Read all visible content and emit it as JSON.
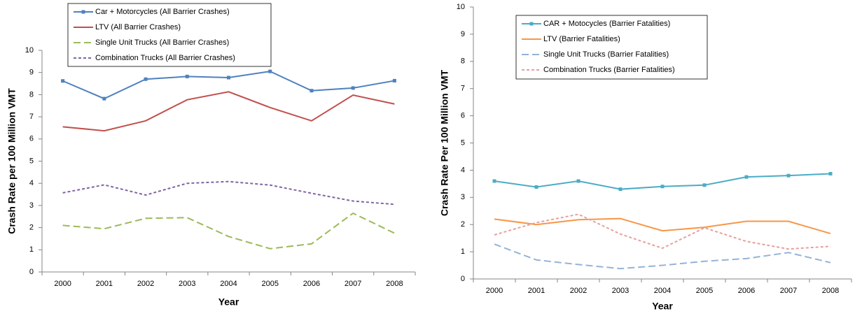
{
  "chart_data": [
    {
      "type": "line",
      "y_label": "Crash Rate per 100 Million VMT",
      "x_label": "Year",
      "categories": [
        "2000",
        "2001",
        "2002",
        "2003",
        "2004",
        "2005",
        "2006",
        "2007",
        "2008"
      ],
      "ylim": [
        0,
        10
      ],
      "yticks": [
        0,
        1,
        2,
        3,
        4,
        5,
        6,
        7,
        8,
        9,
        10
      ],
      "grid": false,
      "series": [
        {
          "name": "Car + Motorcycles (All Barrier Crashes)",
          "color": "#4f81bd",
          "dash": "solid",
          "marker": "square",
          "values": [
            8.62,
            7.82,
            8.7,
            8.82,
            8.77,
            9.05,
            8.18,
            8.3,
            8.63
          ]
        },
        {
          "name": "LTV (All Barrier Crashes)",
          "color": "#c0504d",
          "dash": "solid",
          "marker": "none",
          "values": [
            6.55,
            6.37,
            6.82,
            7.77,
            8.13,
            7.42,
            6.82,
            7.98,
            7.58
          ]
        },
        {
          "name": "Single Unit Trucks (All Barrier Crashes)",
          "color": "#9bbb59",
          "dash": "long",
          "marker": "none",
          "values": [
            2.1,
            1.95,
            2.42,
            2.45,
            1.6,
            1.05,
            1.27,
            2.65,
            1.75
          ]
        },
        {
          "name": "Combination Trucks (All Barrier Crashes)",
          "color": "#8064a2",
          "dash": "short",
          "marker": "none",
          "values": [
            3.57,
            3.93,
            3.47,
            4.0,
            4.08,
            3.92,
            3.55,
            3.2,
            3.05
          ]
        }
      ]
    },
    {
      "type": "line",
      "y_label": "Crash Rate Per 100 Million VMT",
      "x_label": "Year",
      "categories": [
        "2000",
        "2001",
        "2002",
        "2003",
        "2004",
        "2005",
        "2006",
        "2007",
        "2008"
      ],
      "ylim": [
        0,
        10
      ],
      "yticks": [
        0,
        1,
        2,
        3,
        4,
        5,
        6,
        7,
        8,
        9,
        10
      ],
      "grid": false,
      "series": [
        {
          "name": "CAR + Motocycles (Barrier Fatalities)",
          "color": "#4bacc6",
          "dash": "solid",
          "marker": "square",
          "values": [
            3.6,
            3.38,
            3.6,
            3.3,
            3.4,
            3.45,
            3.75,
            3.8,
            3.87
          ]
        },
        {
          "name": "LTV (Barrier Fatalities)",
          "color": "#f79646",
          "dash": "solid",
          "marker": "none",
          "values": [
            2.2,
            2.0,
            2.18,
            2.22,
            1.77,
            1.9,
            2.12,
            2.12,
            1.67
          ]
        },
        {
          "name": "Single Unit Trucks (Barrier Fatalities)",
          "color": "#95b3d7",
          "dash": "long",
          "marker": "none",
          "values": [
            1.28,
            0.7,
            0.53,
            0.38,
            0.5,
            0.65,
            0.75,
            0.97,
            0.6
          ]
        },
        {
          "name": "Combination Trucks (Barrier Fatalities)",
          "color": "#e6a09c",
          "dash": "short",
          "marker": "none",
          "values": [
            1.62,
            2.07,
            2.38,
            1.65,
            1.13,
            1.88,
            1.38,
            1.1,
            1.2
          ]
        }
      ]
    }
  ]
}
